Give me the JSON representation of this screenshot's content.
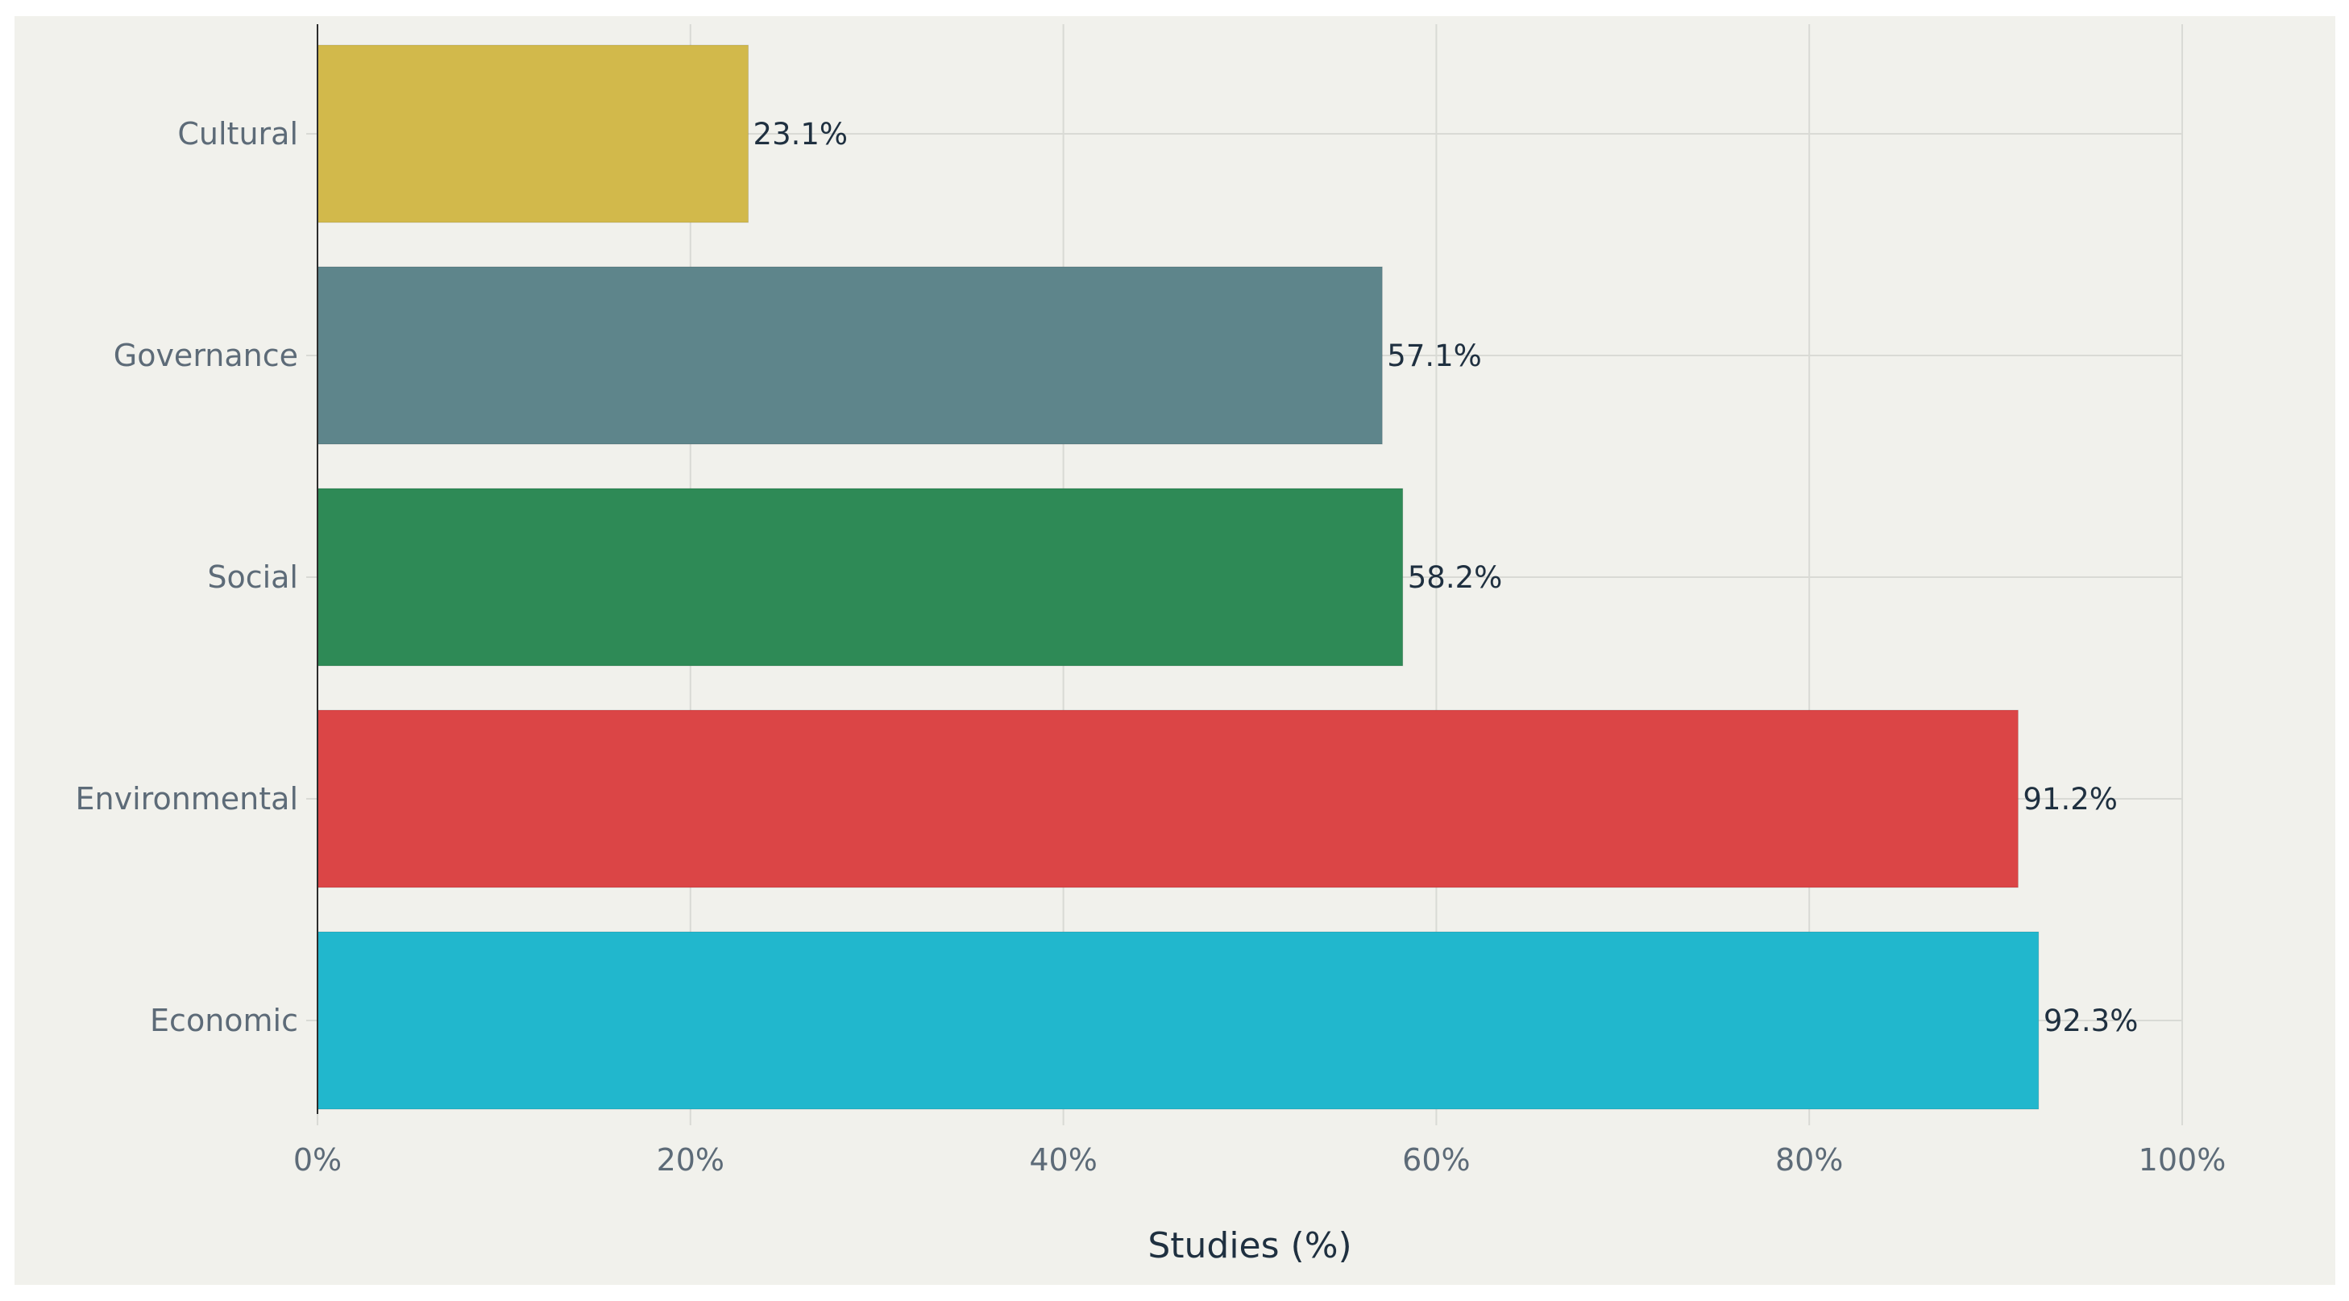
{
  "chart_data": {
    "type": "bar",
    "orientation": "horizontal",
    "categories": [
      "Cultural",
      "Governance",
      "Social",
      "Environmental",
      "Economic"
    ],
    "values": [
      23.1,
      57.1,
      58.2,
      91.2,
      92.3
    ],
    "data_labels": [
      "23.1%",
      "57.1%",
      "58.2%",
      "91.2%",
      "92.3%"
    ],
    "colors": [
      "#d2b94b",
      "#5e858b",
      "#2e8a56",
      "#db4546",
      "#21b7cd"
    ],
    "xlabel": "Studies (%)",
    "ylabel": "",
    "xlim": [
      0,
      100
    ],
    "x_ticks": [
      0,
      20,
      40,
      60,
      80,
      100
    ],
    "x_tick_labels": [
      "0%",
      "20%",
      "40%",
      "60%",
      "80%",
      "100%"
    ],
    "grid": true,
    "legend": "none",
    "background_color": "#f1f1ec",
    "grid_color": "#d9dad5",
    "axis_color": "#2c2c2c",
    "text_color": "#5d6b78",
    "label_color": "#1f3040"
  }
}
